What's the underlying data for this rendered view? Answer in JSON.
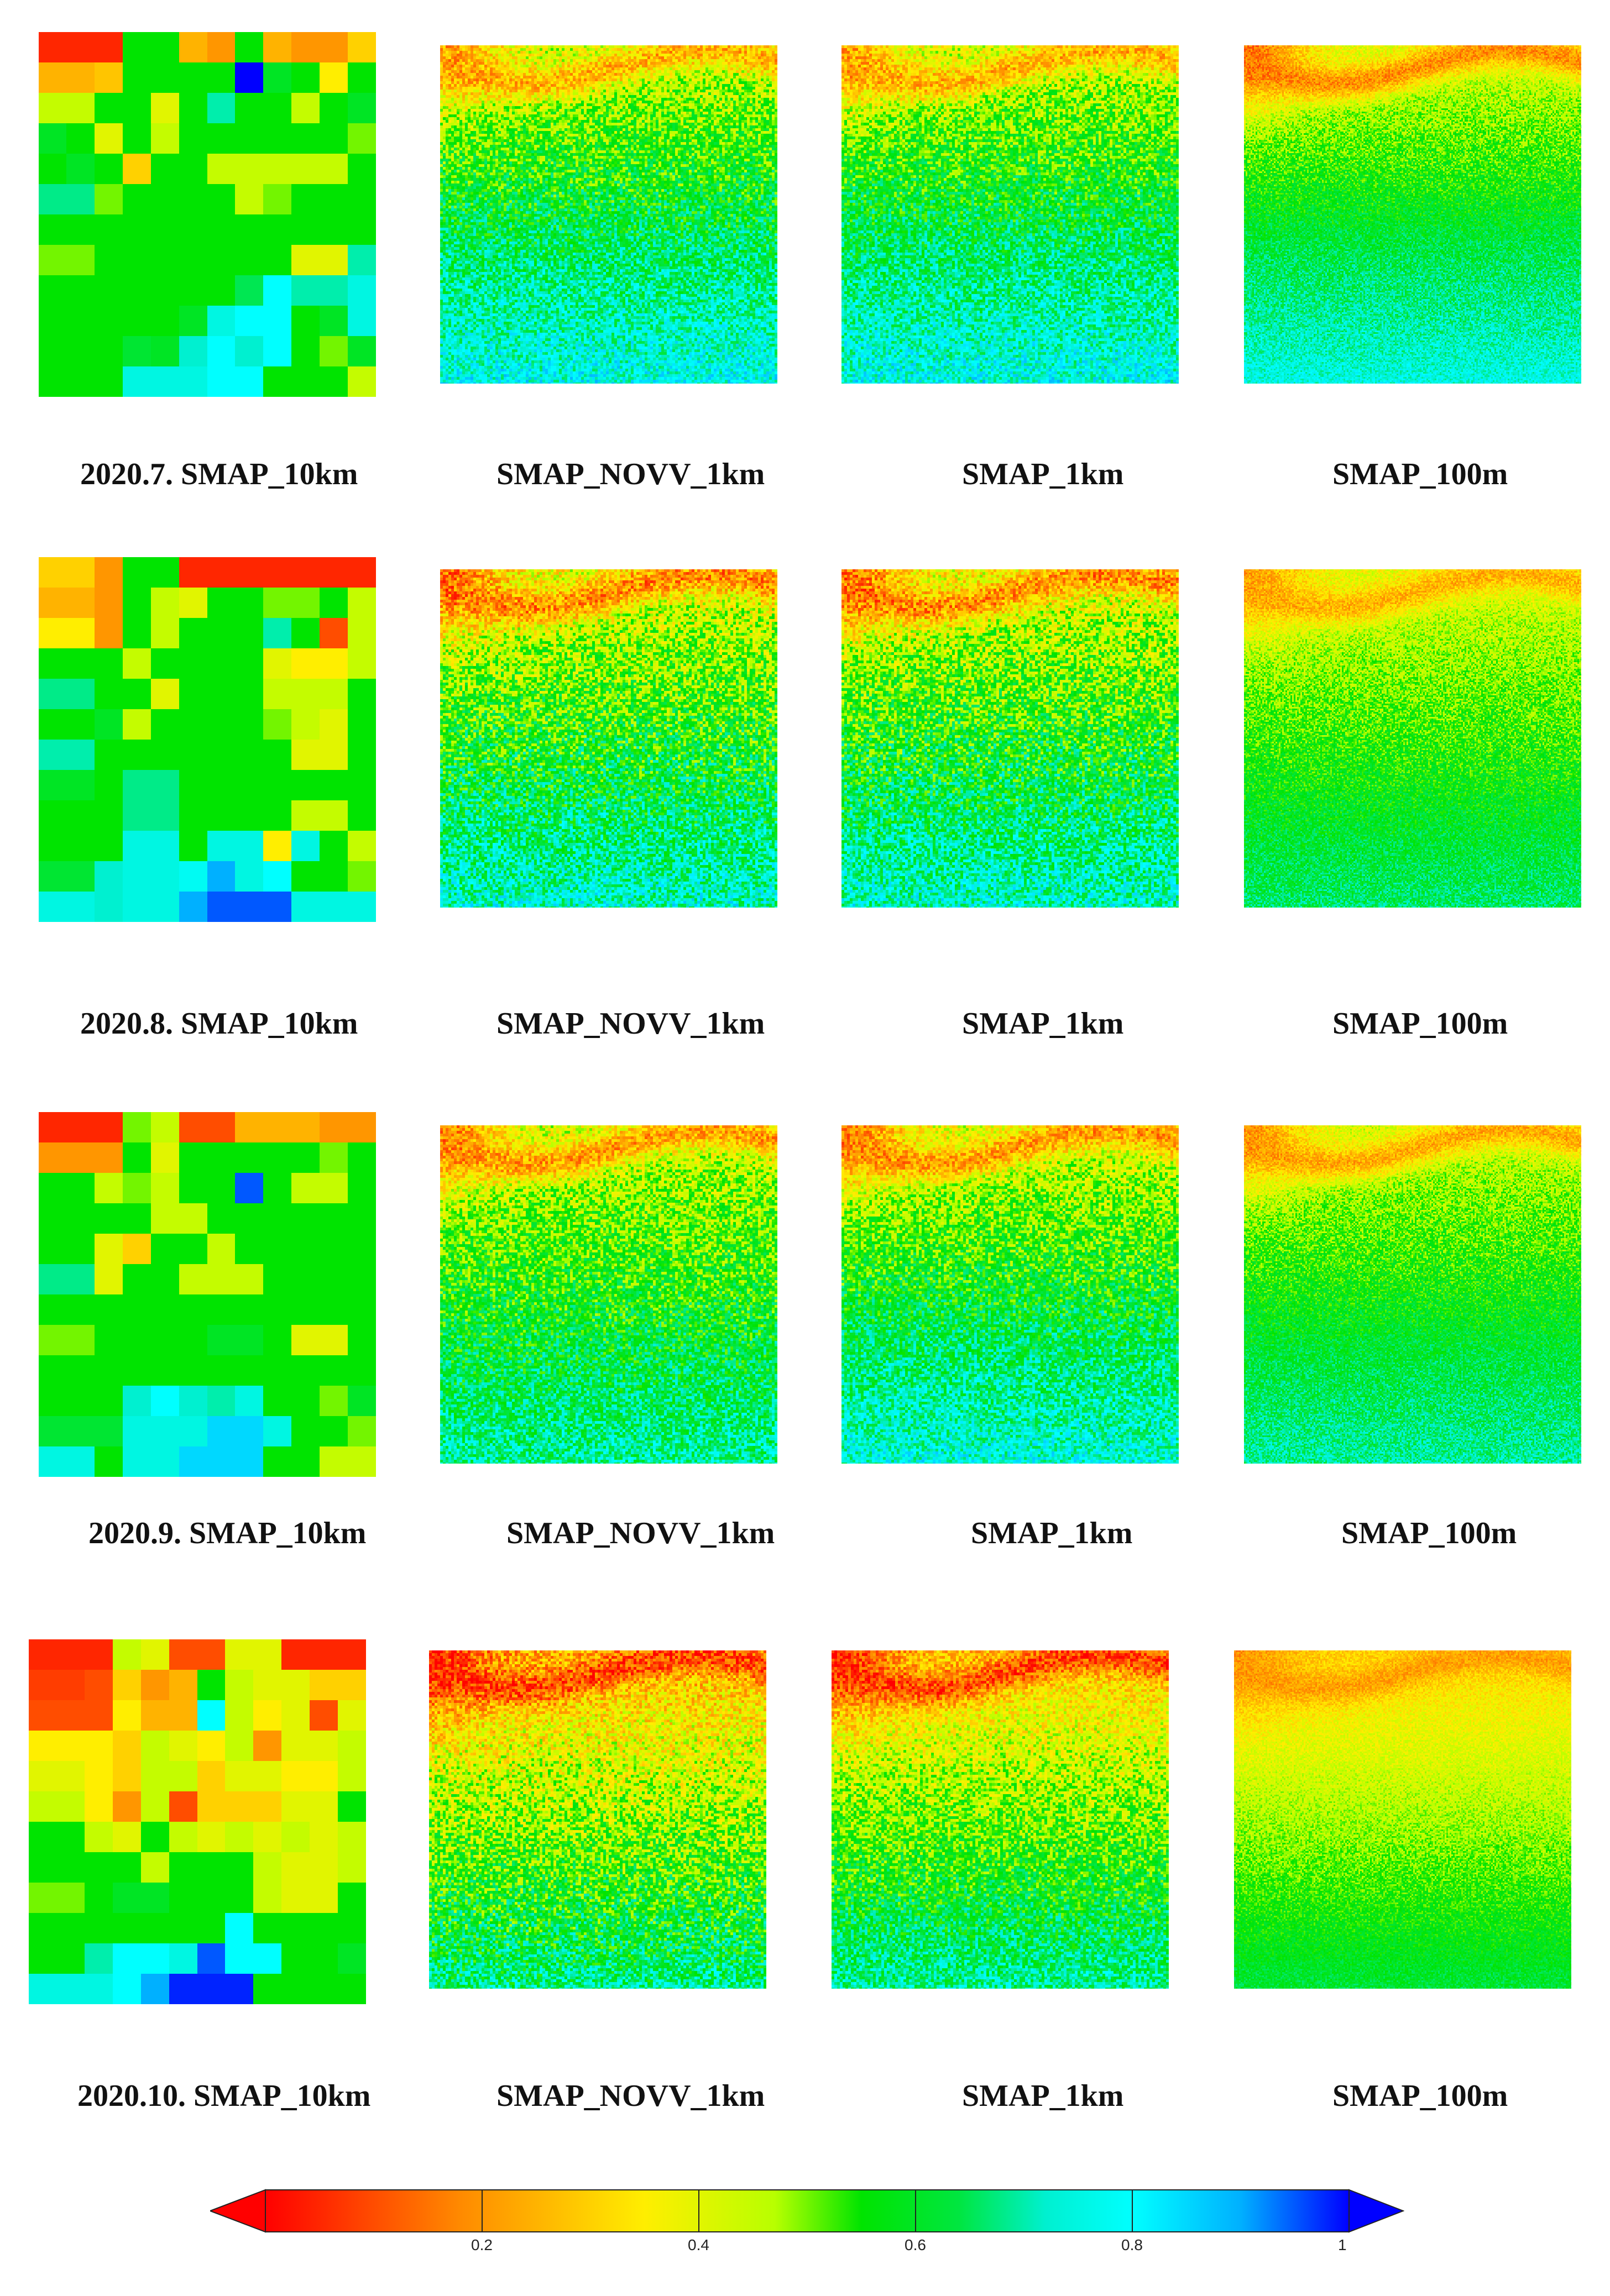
{
  "rows": [
    {
      "labels": [
        "2020.7. SMAP_10km",
        "SMAP_NOVV_1km",
        "SMAP_1km",
        "SMAP_100m"
      ],
      "coarse": [
        [
          0.05,
          0.05,
          0.05,
          0.55,
          0.55,
          0.25,
          0.2,
          0.55,
          0.25,
          0.2,
          0.2,
          0.3
        ],
        [
          0.25,
          0.25,
          0.28,
          0.55,
          0.55,
          0.55,
          0.55,
          1.0,
          0.6,
          0.55,
          0.35,
          0.55
        ],
        [
          0.45,
          0.45,
          0.55,
          0.55,
          0.4,
          0.55,
          0.7,
          0.55,
          0.55,
          0.45,
          0.55,
          0.6
        ],
        [
          0.6,
          0.55,
          0.4,
          0.55,
          0.45,
          0.55,
          0.55,
          0.55,
          0.55,
          0.55,
          0.55,
          0.5
        ],
        [
          0.55,
          0.6,
          0.55,
          0.3,
          0.55,
          0.55,
          0.45,
          0.45,
          0.45,
          0.45,
          0.45,
          0.55
        ],
        [
          0.68,
          0.68,
          0.5,
          0.55,
          0.55,
          0.55,
          0.55,
          0.45,
          0.5,
          0.55,
          0.55,
          0.55
        ],
        [
          0.55,
          0.55,
          0.55,
          0.55,
          0.55,
          0.55,
          0.55,
          0.55,
          0.55,
          0.55,
          0.55,
          0.55
        ],
        [
          0.5,
          0.5,
          0.55,
          0.55,
          0.55,
          0.55,
          0.55,
          0.55,
          0.55,
          0.4,
          0.4,
          0.7
        ],
        [
          0.55,
          0.55,
          0.55,
          0.55,
          0.55,
          0.55,
          0.55,
          0.65,
          0.8,
          0.7,
          0.7,
          0.75
        ],
        [
          0.55,
          0.55,
          0.55,
          0.55,
          0.55,
          0.6,
          0.75,
          0.8,
          0.8,
          0.55,
          0.6,
          0.75
        ],
        [
          0.55,
          0.55,
          0.55,
          0.62,
          0.6,
          0.72,
          0.8,
          0.72,
          0.8,
          0.55,
          0.5,
          0.6
        ],
        [
          0.55,
          0.55,
          0.55,
          0.75,
          0.75,
          0.75,
          0.8,
          0.8,
          0.55,
          0.55,
          0.55,
          0.45
        ]
      ],
      "fine": [
        {
          "topVal": 0.42,
          "bottomVal": 0.78,
          "hotspot": 0.22,
          "noise": 0.12
        },
        {
          "topVal": 0.42,
          "bottomVal": 0.78,
          "hotspot": 0.22,
          "noise": 0.12
        },
        {
          "topVal": 0.4,
          "bottomVal": 0.76,
          "hotspot": 0.15,
          "noise": 0.08
        }
      ]
    },
    {
      "labels": [
        "2020.8. SMAP_10km",
        "SMAP_NOVV_1km",
        "SMAP_1km",
        "SMAP_100m"
      ],
      "coarse": [
        [
          0.3,
          0.3,
          0.2,
          0.55,
          0.55,
          0.05,
          0.05,
          0.05,
          0.05,
          0.05,
          0.05,
          0.05
        ],
        [
          0.25,
          0.25,
          0.2,
          0.55,
          0.45,
          0.4,
          0.55,
          0.55,
          0.5,
          0.5,
          0.55,
          0.45
        ],
        [
          0.35,
          0.35,
          0.2,
          0.55,
          0.45,
          0.55,
          0.55,
          0.55,
          0.7,
          0.55,
          0.1,
          0.45
        ],
        [
          0.55,
          0.55,
          0.55,
          0.45,
          0.55,
          0.55,
          0.55,
          0.55,
          0.4,
          0.35,
          0.35,
          0.45
        ],
        [
          0.68,
          0.68,
          0.55,
          0.55,
          0.4,
          0.55,
          0.55,
          0.55,
          0.45,
          0.45,
          0.45,
          0.55
        ],
        [
          0.55,
          0.55,
          0.6,
          0.45,
          0.55,
          0.55,
          0.55,
          0.55,
          0.5,
          0.45,
          0.4,
          0.55
        ],
        [
          0.7,
          0.7,
          0.55,
          0.55,
          0.55,
          0.55,
          0.55,
          0.55,
          0.55,
          0.4,
          0.4,
          0.55
        ],
        [
          0.6,
          0.6,
          0.55,
          0.68,
          0.68,
          0.55,
          0.55,
          0.55,
          0.55,
          0.55,
          0.55,
          0.55
        ],
        [
          0.55,
          0.55,
          0.55,
          0.68,
          0.68,
          0.55,
          0.55,
          0.55,
          0.55,
          0.45,
          0.45,
          0.55
        ],
        [
          0.55,
          0.55,
          0.55,
          0.75,
          0.75,
          0.55,
          0.75,
          0.75,
          0.35,
          0.75,
          0.55,
          0.45
        ],
        [
          0.62,
          0.62,
          0.72,
          0.75,
          0.75,
          0.78,
          0.9,
          0.75,
          0.8,
          0.55,
          0.55,
          0.5
        ],
        [
          0.75,
          0.75,
          0.72,
          0.75,
          0.75,
          0.9,
          0.95,
          0.95,
          0.95,
          0.75,
          0.75,
          0.75
        ]
      ],
      "fine": [
        {
          "topVal": 0.38,
          "bottomVal": 0.74,
          "hotspot": 0.15,
          "noise": 0.14
        },
        {
          "topVal": 0.38,
          "bottomVal": 0.74,
          "hotspot": 0.15,
          "noise": 0.14
        },
        {
          "topVal": 0.4,
          "bottomVal": 0.66,
          "hotspot": 0.22,
          "noise": 0.08
        }
      ]
    },
    {
      "labels": [
        "2020.9. SMAP_10km",
        "SMAP_NOVV_1km",
        "SMAP_1km",
        "SMAP_100m"
      ],
      "coarse": [
        [
          0.05,
          0.05,
          0.05,
          0.5,
          0.45,
          0.1,
          0.1,
          0.25,
          0.25,
          0.25,
          0.2,
          0.2
        ],
        [
          0.2,
          0.2,
          0.2,
          0.55,
          0.4,
          0.55,
          0.55,
          0.55,
          0.55,
          0.55,
          0.5,
          0.55
        ],
        [
          0.55,
          0.55,
          0.45,
          0.5,
          0.45,
          0.55,
          0.55,
          0.95,
          0.55,
          0.45,
          0.45,
          0.55
        ],
        [
          0.55,
          0.55,
          0.55,
          0.55,
          0.45,
          0.45,
          0.55,
          0.55,
          0.55,
          0.55,
          0.55,
          0.55
        ],
        [
          0.55,
          0.55,
          0.4,
          0.3,
          0.55,
          0.55,
          0.45,
          0.55,
          0.55,
          0.55,
          0.55,
          0.55
        ],
        [
          0.68,
          0.68,
          0.4,
          0.55,
          0.55,
          0.45,
          0.45,
          0.45,
          0.55,
          0.55,
          0.55,
          0.55
        ],
        [
          0.55,
          0.55,
          0.55,
          0.55,
          0.55,
          0.55,
          0.55,
          0.55,
          0.55,
          0.55,
          0.55,
          0.55
        ],
        [
          0.5,
          0.5,
          0.55,
          0.55,
          0.55,
          0.55,
          0.6,
          0.6,
          0.55,
          0.4,
          0.4,
          0.55
        ],
        [
          0.55,
          0.55,
          0.55,
          0.55,
          0.55,
          0.55,
          0.55,
          0.55,
          0.55,
          0.55,
          0.55,
          0.55
        ],
        [
          0.55,
          0.55,
          0.55,
          0.72,
          0.8,
          0.72,
          0.7,
          0.75,
          0.55,
          0.55,
          0.5,
          0.6
        ],
        [
          0.62,
          0.62,
          0.62,
          0.75,
          0.75,
          0.75,
          0.85,
          0.85,
          0.75,
          0.55,
          0.55,
          0.5
        ],
        [
          0.75,
          0.75,
          0.55,
          0.75,
          0.75,
          0.85,
          0.85,
          0.85,
          0.55,
          0.55,
          0.45,
          0.45
        ]
      ],
      "fine": [
        {
          "topVal": 0.42,
          "bottomVal": 0.7,
          "hotspot": 0.18,
          "noise": 0.12
        },
        {
          "topVal": 0.4,
          "bottomVal": 0.76,
          "hotspot": 0.18,
          "noise": 0.12
        },
        {
          "topVal": 0.42,
          "bottomVal": 0.7,
          "hotspot": 0.2,
          "noise": 0.08
        }
      ]
    },
    {
      "labels": [
        "2020.10. SMAP_10km",
        "SMAP_NOVV_1km",
        "SMAP_1km",
        "SMAP_100m"
      ],
      "coarse": [
        [
          0.05,
          0.05,
          0.05,
          0.45,
          0.4,
          0.1,
          0.1,
          0.4,
          0.4,
          0.05,
          0.05,
          0.05
        ],
        [
          0.08,
          0.08,
          0.1,
          0.3,
          0.2,
          0.25,
          0.55,
          0.45,
          0.4,
          0.4,
          0.3,
          0.3
        ],
        [
          0.1,
          0.1,
          0.1,
          0.35,
          0.25,
          0.25,
          0.8,
          0.45,
          0.35,
          0.4,
          0.1,
          0.4
        ],
        [
          0.35,
          0.35,
          0.35,
          0.3,
          0.45,
          0.4,
          0.35,
          0.45,
          0.2,
          0.4,
          0.4,
          0.45
        ],
        [
          0.4,
          0.4,
          0.35,
          0.3,
          0.45,
          0.45,
          0.3,
          0.4,
          0.4,
          0.35,
          0.35,
          0.45
        ],
        [
          0.45,
          0.45,
          0.35,
          0.2,
          0.45,
          0.1,
          0.3,
          0.3,
          0.3,
          0.4,
          0.4,
          0.55
        ],
        [
          0.55,
          0.55,
          0.45,
          0.4,
          0.55,
          0.45,
          0.4,
          0.45,
          0.4,
          0.45,
          0.4,
          0.45
        ],
        [
          0.55,
          0.55,
          0.55,
          0.55,
          0.45,
          0.55,
          0.55,
          0.55,
          0.45,
          0.4,
          0.4,
          0.45
        ],
        [
          0.5,
          0.5,
          0.55,
          0.6,
          0.6,
          0.55,
          0.55,
          0.55,
          0.45,
          0.4,
          0.4,
          0.55
        ],
        [
          0.55,
          0.55,
          0.55,
          0.55,
          0.55,
          0.55,
          0.55,
          0.8,
          0.55,
          0.55,
          0.55,
          0.55
        ],
        [
          0.55,
          0.55,
          0.7,
          0.8,
          0.8,
          0.75,
          0.95,
          0.8,
          0.8,
          0.55,
          0.55,
          0.6
        ],
        [
          0.75,
          0.75,
          0.75,
          0.8,
          0.9,
          0.98,
          0.98,
          0.98,
          0.55,
          0.55,
          0.55,
          0.55
        ]
      ],
      "fine": [
        {
          "topVal": 0.25,
          "bottomVal": 0.68,
          "hotspot": 0.05,
          "noise": 0.14
        },
        {
          "topVal": 0.28,
          "bottomVal": 0.7,
          "hotspot": 0.05,
          "noise": 0.12
        },
        {
          "topVal": 0.3,
          "bottomVal": 0.62,
          "hotspot": 0.2,
          "noise": 0.06
        }
      ]
    }
  ],
  "colorbar": {
    "min": 0,
    "max": 1,
    "ticks": [
      {
        "value": 0.2,
        "label": "0.2"
      },
      {
        "value": 0.4,
        "label": "0.4"
      },
      {
        "value": 0.6,
        "label": "0.6"
      },
      {
        "value": 0.8,
        "label": "0.8"
      },
      {
        "value": 1.0,
        "label": "1"
      }
    ],
    "stops": [
      {
        "v": 0.0,
        "c": "#ff0000"
      },
      {
        "v": 0.18,
        "c": "#ff8a00"
      },
      {
        "v": 0.35,
        "c": "#ffee00"
      },
      {
        "v": 0.47,
        "c": "#b8ff00"
      },
      {
        "v": 0.55,
        "c": "#00e400"
      },
      {
        "v": 0.64,
        "c": "#00e640"
      },
      {
        "v": 0.72,
        "c": "#00f0d0"
      },
      {
        "v": 0.8,
        "c": "#00ffff"
      },
      {
        "v": 0.9,
        "c": "#00b0ff"
      },
      {
        "v": 1.0,
        "c": "#0000ff"
      }
    ]
  }
}
